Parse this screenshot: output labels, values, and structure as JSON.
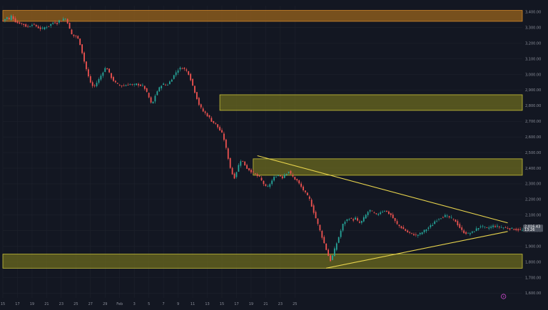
{
  "theme": {
    "background": "#131722",
    "grid": "#1e222d",
    "up_color": "#26a69a",
    "down_color": "#ef5350",
    "zone_fill": "#6b6a1f",
    "zone_border": "#c9c23a",
    "top_zone_fill": "#8a5a1c",
    "top_zone_border": "#d48a2a",
    "trendline_color": "#e8d44d",
    "price_tag_color": "#4c525e",
    "event_marker_color": "#d04ad0"
  },
  "chart_data": {
    "type": "candlestick",
    "title": "",
    "y_axis": {
      "position": "right",
      "ylim": [
        1570,
        3440
      ],
      "ticks": [
        "3,400.00",
        "3,300.00",
        "3,200.00",
        "3,100.00",
        "3,000.00",
        "2,900.00",
        "2,800.00",
        "2,700.00",
        "2,600.00",
        "2,500.00",
        "2,400.00",
        "2,300.00",
        "2,200.00",
        "2,100.00",
        "2,000.00",
        "1,900.00",
        "1,800.00",
        "1,700.00",
        "1,600.00"
      ],
      "tick_values": [
        3400,
        3300,
        3200,
        3100,
        3000,
        2900,
        2800,
        2700,
        2600,
        2500,
        2400,
        2300,
        2200,
        2100,
        2000,
        1900,
        1800,
        1700,
        1600
      ]
    },
    "x_axis": {
      "ticks": [
        "15",
        "17",
        "19",
        "21",
        "23",
        "25",
        "27",
        "29",
        "Feb",
        "3",
        "5",
        "7",
        "9",
        "11",
        "13",
        "15",
        "17",
        "19",
        "21",
        "23",
        "25"
      ],
      "tick_index": [
        0,
        7,
        14,
        21,
        28,
        35,
        42,
        49,
        56,
        63,
        70,
        77,
        84,
        91,
        98,
        105,
        112,
        119,
        126,
        133,
        140
      ]
    },
    "series": [
      {
        "x_start": 0,
        "x_end": 117,
        "values": [
          3345,
          3355,
          3365,
          3350,
          3375,
          3360,
          3340,
          3330,
          3330,
          3325,
          3320,
          3310,
          3305,
          3310,
          3325,
          3315,
          3310,
          3300,
          3295,
          3290,
          3300,
          3305,
          3310,
          3320,
          3330,
          3335,
          3325,
          3345,
          3340,
          3355,
          3360,
          3345,
          3300,
          3260,
          3245,
          3250,
          3235,
          3210,
          3160,
          3100,
          3050,
          3000,
          2960,
          2930,
          2920,
          2940,
          2960,
          2980,
          3010,
          3030,
          3050,
          3020,
          2990,
          2970,
          2950,
          2940,
          2930,
          2935,
          2920,
          2935,
          2930,
          2940,
          2935,
          2930,
          2935,
          2940,
          2932,
          2928,
          2925,
          2900,
          2870,
          2840,
          2800,
          2840,
          2880,
          2900,
          2920,
          2940,
          2935,
          2930,
          2940,
          2960,
          2980,
          3000,
          3020,
          3035,
          3040,
          3045,
          3030,
          3020,
          3000,
          2960,
          2920,
          2880,
          2840,
          2800,
          2780,
          2760,
          2750,
          2735,
          2720,
          2700,
          2690,
          2680,
          2660,
          2640,
          2620,
          2580,
          2520,
          2460,
          2400,
          2360,
          2340,
          2380,
          2420,
          2450,
          2440,
          2420,
          2400
        ]
      },
      {
        "x_start": 117,
        "x_end": 250,
        "values": [
          2400,
          2390,
          2380,
          2370,
          2360,
          2350,
          2340,
          2320,
          2300,
          2280,
          2280,
          2300,
          2320,
          2340,
          2350,
          2355,
          2350,
          2340,
          2360,
          2370,
          2380,
          2360,
          2345,
          2330,
          2320,
          2300,
          2280,
          2260,
          2240,
          2220,
          2200,
          2160,
          2120,
          2080,
          2040,
          2000,
          1960,
          1920,
          1880,
          1840,
          1810,
          1840,
          1880,
          1920,
          1960,
          2000,
          2040,
          2060,
          2070,
          2080,
          2075,
          2070,
          2080,
          2060,
          2050,
          2060,
          2080,
          2100,
          2120,
          2130,
          2120,
          2110,
          2100,
          2110,
          2120,
          2125,
          2130,
          2120,
          2110,
          2100,
          2080,
          2060,
          2040,
          2030,
          2020,
          2010,
          2000,
          1990,
          1985,
          1980,
          1975,
          1970,
          1975,
          1980,
          1990,
          2000,
          2010,
          2020,
          2030,
          2040,
          2060,
          2070,
          2080,
          2085,
          2090,
          2095,
          2090,
          2085,
          2080,
          2070,
          2060,
          2040,
          2020,
          2000,
          1990,
          1985,
          1980,
          1985,
          1990,
          2000,
          2010,
          2020,
          2030,
          2025,
          2020,
          2015,
          2020,
          2025,
          2030,
          2028,
          2026,
          2024,
          2022,
          2020,
          2018,
          2016,
          2014,
          2012,
          2010,
          2008,
          2006,
          2004,
          2002,
          2000
        ]
      }
    ],
    "zones": [
      {
        "low": 3340,
        "high": 3410,
        "kind": "top",
        "from_index": 0
      },
      {
        "low": 2770,
        "high": 2870,
        "kind": "mid",
        "from_index": 104
      },
      {
        "low": 2355,
        "high": 2460,
        "kind": "mid",
        "from_index": 120
      },
      {
        "low": 1760,
        "high": 1850,
        "kind": "mid",
        "from_index": 0
      }
    ],
    "trendlines": [
      {
        "from": [
          122,
          2480
        ],
        "to": [
          242,
          2050
        ]
      },
      {
        "from": [
          155,
          1760
        ],
        "to": [
          242,
          1995
        ]
      }
    ],
    "current_price": {
      "label": "2,016.43",
      "sublabel": "13:26",
      "value": 2016
    },
    "event_marker": {
      "index": 240,
      "symbol": "P"
    }
  }
}
